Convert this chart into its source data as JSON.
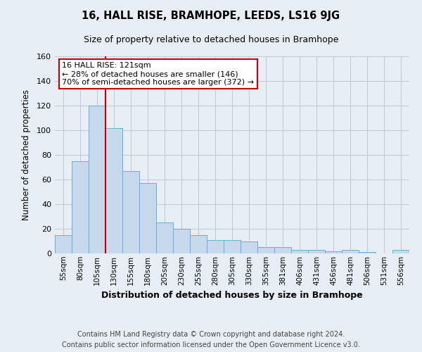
{
  "title": "16, HALL RISE, BRAMHOPE, LEEDS, LS16 9JG",
  "subtitle": "Size of property relative to detached houses in Bramhope",
  "xlabel": "Distribution of detached houses by size in Bramhope",
  "ylabel": "Number of detached properties",
  "bar_labels": [
    "55sqm",
    "80sqm",
    "105sqm",
    "130sqm",
    "155sqm",
    "180sqm",
    "205sqm",
    "230sqm",
    "255sqm",
    "280sqm",
    "305sqm",
    "330sqm",
    "355sqm",
    "381sqm",
    "406sqm",
    "431sqm",
    "456sqm",
    "481sqm",
    "506sqm",
    "531sqm",
    "556sqm"
  ],
  "bar_values": [
    15,
    75,
    120,
    102,
    67,
    57,
    25,
    20,
    15,
    11,
    11,
    10,
    5,
    5,
    3,
    3,
    2,
    3,
    1,
    0,
    3
  ],
  "bar_color": "#c6d9ec",
  "bar_edge_color": "#6aaed6",
  "vline_x_idx": 2,
  "vline_color": "#cc0000",
  "ylim": [
    0,
    160
  ],
  "yticks": [
    0,
    20,
    40,
    60,
    80,
    100,
    120,
    140,
    160
  ],
  "annotation_title": "16 HALL RISE: 121sqm",
  "annotation_line1": "← 28% of detached houses are smaller (146)",
  "annotation_line2": "70% of semi-detached houses are larger (372) →",
  "annotation_box_color": "#ffffff",
  "annotation_box_edge": "#cc0000",
  "footer1": "Contains HM Land Registry data © Crown copyright and database right 2024.",
  "footer2": "Contains public sector information licensed under the Open Government Licence v3.0.",
  "fig_background": "#e8eef5",
  "plot_background": "#e8eef5",
  "grid_color": "#c0ccd8"
}
